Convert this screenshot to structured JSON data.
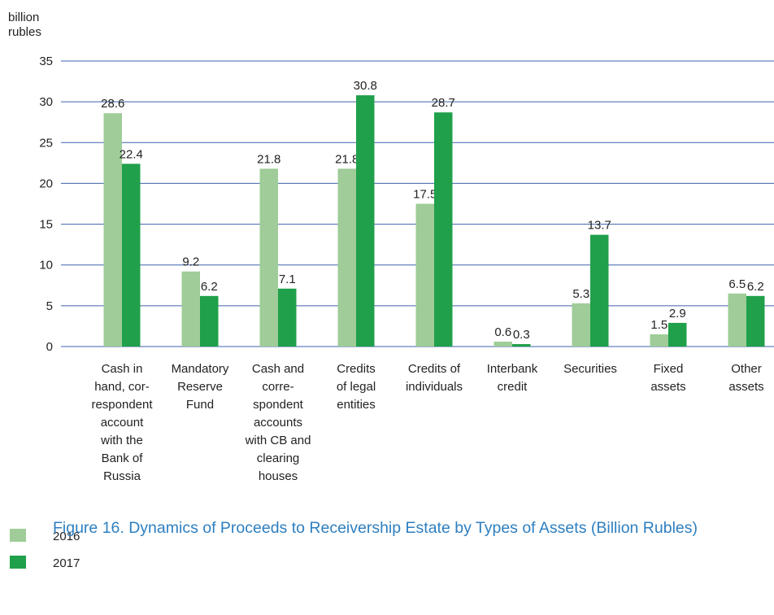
{
  "chart_data": {
    "type": "bar",
    "title": "Figure 16. Dynamics of Proceeds to Receivership Estate by Types of Assets (Billion Rubles)",
    "y_label": "billion\nrubles",
    "categories": [
      "Cash in\nhand, cor-\nrespondent\naccount\nwith the\nBank of\nRussia",
      "Mandatory\nReserve\nFund",
      "Cash and\ncorre-\nspondent\naccounts\nwith CB and\nclearing\nhouses",
      "Credits\nof legal\nentities",
      "Credits of\nindividuals",
      "Interbank\ncredit",
      "Securities",
      "Fixed\nassets",
      "Other\nassets"
    ],
    "series": [
      {
        "name": "2016",
        "color": "#9fcc98",
        "values": [
          28.6,
          9.2,
          21.8,
          21.8,
          17.5,
          0.6,
          5.3,
          1.5,
          6.5
        ]
      },
      {
        "name": "2017",
        "color": "#20a04a",
        "values": [
          22.4,
          6.2,
          7.1,
          30.8,
          28.7,
          0.3,
          13.7,
          2.9,
          6.2
        ]
      }
    ],
    "ylim": [
      0,
      35
    ],
    "yticks": [
      0,
      5,
      10,
      15,
      20,
      25,
      30,
      35
    ],
    "grid": true,
    "grid_color": "#3f62ad"
  }
}
